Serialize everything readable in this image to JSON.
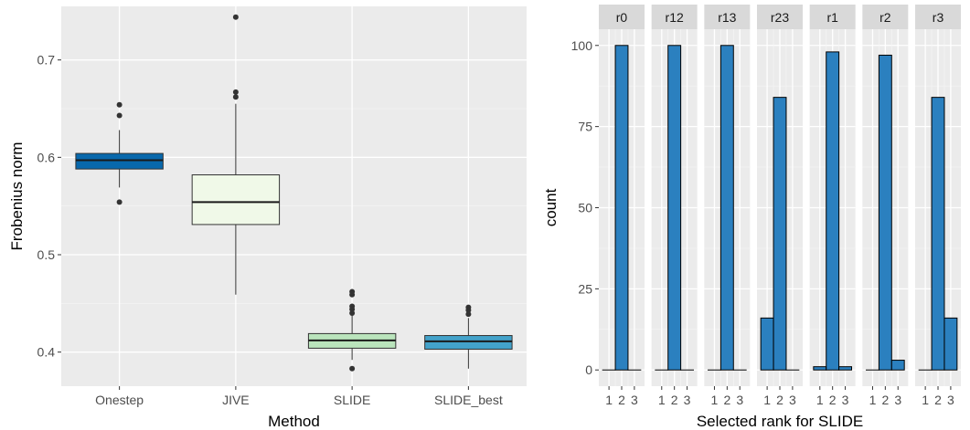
{
  "chart_data": [
    {
      "type": "box",
      "xlabel": "Method",
      "ylabel": "Frobenius norm",
      "ylim": [
        0.365,
        0.755
      ],
      "yticks": [
        0.4,
        0.5,
        0.6,
        0.7
      ],
      "ytick_labels": [
        "0.4",
        "0.5",
        "0.6",
        "0.7"
      ],
      "grid": true,
      "categories": [
        "Onestep",
        "JIVE",
        "SLIDE",
        "SLIDE_best"
      ],
      "fill_colors": [
        "#0868ac",
        "#f0f9e8",
        "#bae4bc",
        "#43a2ca"
      ],
      "boxes": [
        {
          "name": "Onestep",
          "whisker_low": 0.569,
          "q1": 0.588,
          "median": 0.597,
          "q3": 0.604,
          "whisker_high": 0.628,
          "outliers": [
            0.654,
            0.643,
            0.554
          ]
        },
        {
          "name": "JIVE",
          "whisker_low": 0.459,
          "q1": 0.531,
          "median": 0.554,
          "q3": 0.582,
          "whisker_high": 0.655,
          "outliers": [
            0.744,
            0.667,
            0.662
          ]
        },
        {
          "name": "SLIDE",
          "whisker_low": 0.392,
          "q1": 0.404,
          "median": 0.412,
          "q3": 0.419,
          "whisker_high": 0.438,
          "outliers": [
            0.462,
            0.459,
            0.447,
            0.444,
            0.44,
            0.383
          ]
        },
        {
          "name": "SLIDE_best",
          "whisker_low": 0.383,
          "q1": 0.403,
          "median": 0.411,
          "q3": 0.417,
          "whisker_high": 0.435,
          "outliers": [
            0.446,
            0.443,
            0.439
          ]
        }
      ]
    },
    {
      "type": "bar",
      "facet": true,
      "xlabel": "Selected rank for SLIDE",
      "ylabel": "count",
      "ylim": [
        -5,
        105
      ],
      "yticks": [
        0,
        25,
        50,
        75,
        100
      ],
      "ytick_labels": [
        "0",
        "25",
        "50",
        "75",
        "100"
      ],
      "categories": [
        "1",
        "2",
        "3"
      ],
      "grid": true,
      "bar_color": "#2b80bf",
      "panels": [
        {
          "label": "r0",
          "values": [
            0,
            100,
            0
          ]
        },
        {
          "label": "r12",
          "values": [
            0,
            100,
            0
          ]
        },
        {
          "label": "r13",
          "values": [
            0,
            100,
            0
          ]
        },
        {
          "label": "r23",
          "values": [
            16,
            84,
            0
          ]
        },
        {
          "label": "r1",
          "values": [
            1,
            98,
            1
          ]
        },
        {
          "label": "r2",
          "values": [
            0,
            97,
            3
          ]
        },
        {
          "label": "r3",
          "values": [
            0,
            84,
            16
          ]
        }
      ]
    }
  ]
}
